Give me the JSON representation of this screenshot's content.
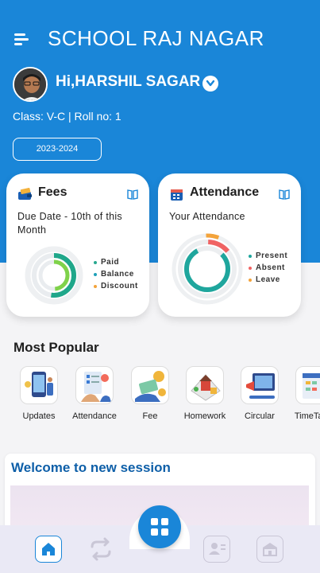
{
  "app": {
    "title": "SCHOOL RAJ NAGAR"
  },
  "user": {
    "greeting": "Hi,HARSHIL SAGAR",
    "class_info": "Class: V-C | Roll no: 1"
  },
  "session": {
    "year": "2023-2024"
  },
  "fees_card": {
    "title": "Fees",
    "subtitle": "Due Date - 10th of this Month",
    "legend": [
      {
        "label": "Paid",
        "color": "#28a88f"
      },
      {
        "label": "Balance",
        "color": "#1fa0b8"
      },
      {
        "label": "Discount",
        "color": "#f3a33b"
      }
    ],
    "colors": {
      "ring_main": "#1fa78a",
      "ring_inner": "#7fd24a",
      "ring_track": "#e9ecef"
    }
  },
  "attendance_card": {
    "title": "Attendance",
    "subtitle": "Your Attendance",
    "legend": [
      {
        "label": "Present",
        "color": "#1fa69d"
      },
      {
        "label": "Absent",
        "color": "#f06363"
      },
      {
        "label": "Leave",
        "color": "#f3a33b"
      }
    ],
    "colors": {
      "present": "#1fa69d",
      "absent": "#f06363",
      "leave": "#f3a33b"
    }
  },
  "popular": {
    "title": "Most Popular",
    "items": [
      {
        "label": "Updates",
        "icon": "updates-icon"
      },
      {
        "label": "Attendance",
        "icon": "attendance-icon"
      },
      {
        "label": "Fee",
        "icon": "fee-icon"
      },
      {
        "label": "Homework",
        "icon": "homework-icon"
      },
      {
        "label": "Circular",
        "icon": "circular-icon"
      },
      {
        "label": "TimeTable",
        "icon": "timetable-icon"
      }
    ]
  },
  "welcome": {
    "title": "Welcome to new session"
  },
  "bottom_nav": {
    "items": [
      "home-icon",
      "switch-icon",
      "grid-icon",
      "profile-icon",
      "school-icon"
    ]
  },
  "theme": {
    "primary": "#1a86d8",
    "background": "#f4f4f6"
  }
}
